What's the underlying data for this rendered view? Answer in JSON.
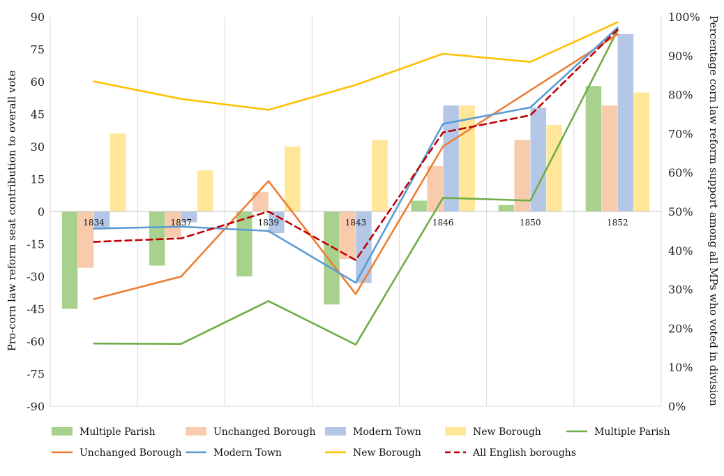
{
  "chart_data": {
    "type": "bar",
    "categories": [
      "1834",
      "1837",
      "1839",
      "1843",
      "1846",
      "1850",
      "1852"
    ],
    "ylabel": "Pro-corn law reform seat contribution to overall vote",
    "y2label": "Percentage corn law reform support among all MPs who voted in division",
    "ylim": [
      -90,
      90
    ],
    "y_ticks": [
      "90",
      "75",
      "60",
      "45",
      "30",
      "15",
      "0",
      "-15",
      "-30",
      "-45",
      "-60",
      "-75",
      "-90"
    ],
    "y2lim": [
      0,
      100
    ],
    "y2_ticks": [
      "100%",
      "90%",
      "80%",
      "70%",
      "60%",
      "50%",
      "40%",
      "30%",
      "20%",
      "10%",
      "0%"
    ],
    "grid": "vertical",
    "legend_position": "bottom",
    "bar_series": [
      {
        "name": "Multiple Parish",
        "color": "#a9d18e",
        "values": [
          -45,
          -25,
          -30,
          -43,
          5,
          3,
          58
        ]
      },
      {
        "name": "Unchanged Borough",
        "color": "#f8cbad",
        "values": [
          -26,
          -12,
          9,
          -22,
          21,
          33,
          49
        ]
      },
      {
        "name": "Modern Town",
        "color": "#b4c7e7",
        "values": [
          -8,
          -5,
          -10,
          -33,
          49,
          48,
          82
        ]
      },
      {
        "name": "New Borough",
        "color": "#ffe699",
        "values": [
          36,
          19,
          30,
          33,
          49,
          40,
          55
        ]
      }
    ],
    "line_series": [
      {
        "name": "Multiple Parish",
        "color": "#70ad47",
        "dashed": false,
        "values": [
          16.1,
          16.0,
          27.0,
          15.8,
          53.5,
          52.8,
          96.5
        ]
      },
      {
        "name": "Unchanged Borough",
        "color": "#ed7d31",
        "dashed": false,
        "values": [
          27.5,
          33.3,
          57.8,
          28.8,
          66.7,
          81.1,
          95.5
        ]
      },
      {
        "name": "Modern Town",
        "color": "#5b9bd5",
        "dashed": false,
        "values": [
          45.6,
          46.1,
          45.0,
          31.7,
          72.5,
          76.7,
          97.2
        ]
      },
      {
        "name": "New Borough",
        "color": "#ffc000",
        "dashed": false,
        "values": [
          83.4,
          78.9,
          76.1,
          82.5,
          90.5,
          88.4,
          98.6
        ]
      },
      {
        "name": "All English boroughs",
        "color": "#c00000",
        "dashed": true,
        "values": [
          42.2,
          43.1,
          50.0,
          37.5,
          70.3,
          74.7,
          96.7
        ]
      }
    ]
  }
}
